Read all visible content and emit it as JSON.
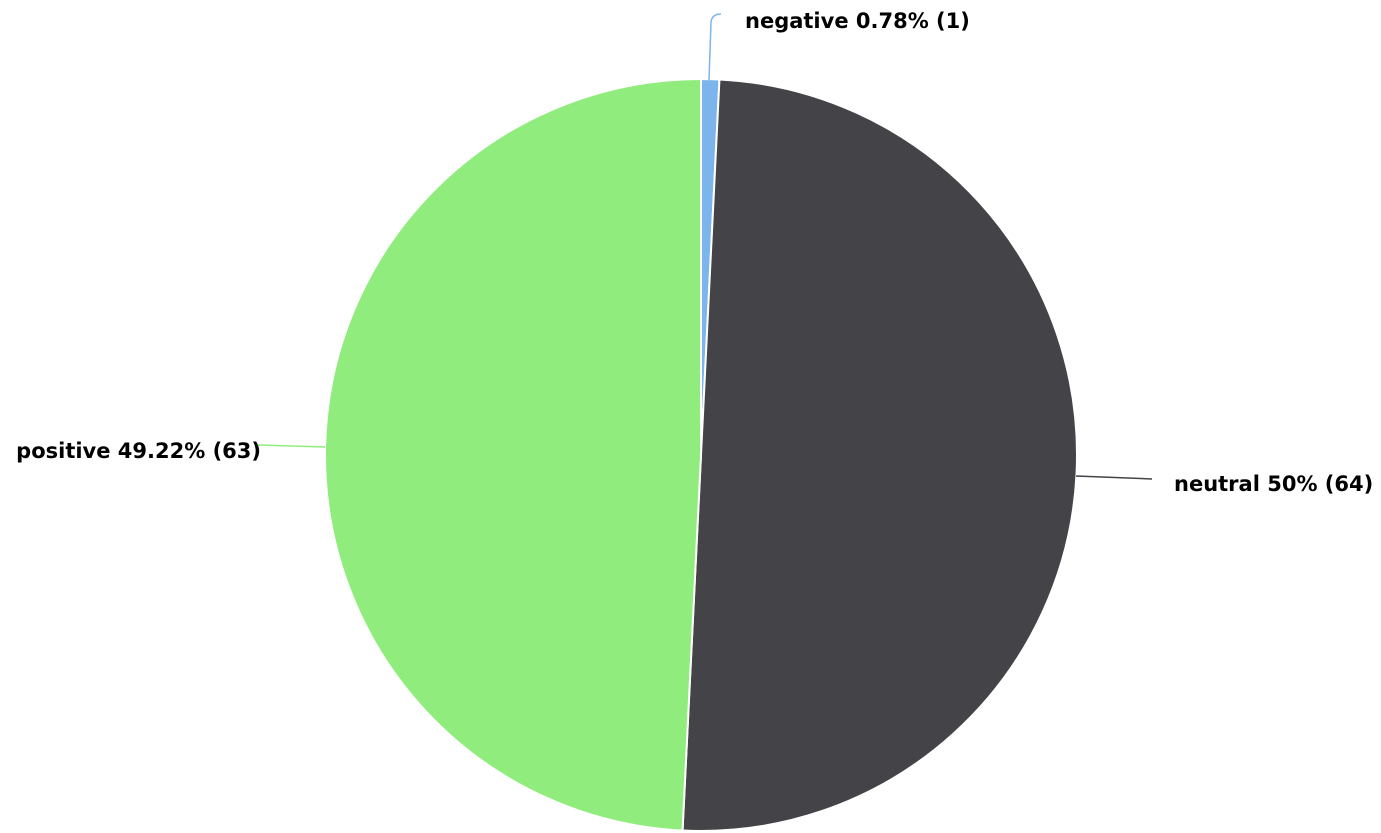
{
  "chart_data": {
    "type": "pie",
    "title": "",
    "start_angle_deg": 0,
    "direction": "clockwise",
    "slices": [
      {
        "name": "negative",
        "value": 1,
        "percent": "0.78%",
        "label": "negative 0.78% (1)",
        "color": "#7cb5ec"
      },
      {
        "name": "neutral",
        "value": 64,
        "percent": "50%",
        "label": "neutral 50% (64)",
        "color": "#434348"
      },
      {
        "name": "positive",
        "value": 63,
        "percent": "49.22%",
        "label": "positive 49.22% (63)",
        "color": "#90ed7d"
      }
    ]
  }
}
